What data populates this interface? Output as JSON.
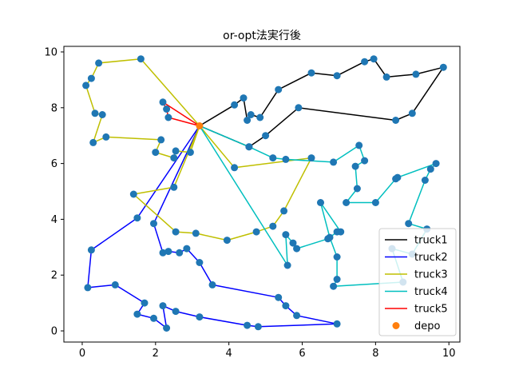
{
  "chart_data": {
    "type": "line",
    "title": "or-opt法実行後",
    "xlabel": "",
    "ylabel": "",
    "xlim": [
      -0.5,
      10.3
    ],
    "ylim": [
      -0.4,
      10.2
    ],
    "xticks": [
      0,
      2,
      4,
      6,
      8,
      10
    ],
    "yticks": [
      0,
      2,
      4,
      6,
      8,
      10
    ],
    "grid": false,
    "legend_position": "lower right",
    "depot": [
      3.2,
      7.35
    ],
    "series": [
      {
        "name": "truck1",
        "color": "#000000",
        "points": [
          [
            3.2,
            7.35
          ],
          [
            4.15,
            8.1
          ],
          [
            4.4,
            8.35
          ],
          [
            4.5,
            7.55
          ],
          [
            4.6,
            7.75
          ],
          [
            4.85,
            7.65
          ],
          [
            5.35,
            8.65
          ],
          [
            6.25,
            9.25
          ],
          [
            6.95,
            9.15
          ],
          [
            7.7,
            9.65
          ],
          [
            7.95,
            9.75
          ],
          [
            8.3,
            9.1
          ],
          [
            9.1,
            9.2
          ],
          [
            9.85,
            9.45
          ],
          [
            9.0,
            7.8
          ],
          [
            8.55,
            7.55
          ],
          [
            5.9,
            8.0
          ],
          [
            5.0,
            7.0
          ],
          [
            4.55,
            6.6
          ],
          [
            3.2,
            7.35
          ]
        ]
      },
      {
        "name": "truck2",
        "color": "#0000ff",
        "points": [
          [
            3.2,
            7.35
          ],
          [
            1.5,
            4.05
          ],
          [
            0.25,
            2.9
          ],
          [
            0.15,
            1.55
          ],
          [
            0.9,
            1.65
          ],
          [
            1.7,
            1.0
          ],
          [
            1.5,
            0.6
          ],
          [
            1.95,
            0.45
          ],
          [
            2.3,
            0.1
          ],
          [
            2.2,
            0.9
          ],
          [
            2.55,
            0.7
          ],
          [
            3.2,
            0.5
          ],
          [
            4.5,
            0.2
          ],
          [
            4.8,
            0.15
          ],
          [
            6.95,
            0.25
          ],
          [
            5.85,
            0.55
          ],
          [
            5.55,
            0.9
          ],
          [
            5.35,
            1.2
          ],
          [
            3.55,
            1.65
          ],
          [
            3.2,
            2.45
          ],
          [
            2.85,
            2.95
          ],
          [
            2.65,
            2.8
          ],
          [
            2.35,
            2.85
          ],
          [
            2.2,
            2.8
          ],
          [
            1.95,
            3.85
          ],
          [
            3.2,
            7.35
          ]
        ]
      },
      {
        "name": "truck3",
        "color": "#bfbf00",
        "points": [
          [
            3.2,
            7.35
          ],
          [
            1.6,
            9.75
          ],
          [
            0.45,
            9.6
          ],
          [
            0.25,
            9.05
          ],
          [
            0.1,
            8.8
          ],
          [
            0.35,
            7.8
          ],
          [
            0.55,
            7.75
          ],
          [
            0.3,
            6.75
          ],
          [
            0.65,
            6.95
          ],
          [
            2.15,
            6.85
          ],
          [
            2.0,
            6.4
          ],
          [
            2.5,
            6.2
          ],
          [
            2.55,
            6.45
          ],
          [
            2.95,
            6.4
          ],
          [
            3.2,
            7.35
          ],
          [
            4.15,
            5.85
          ],
          [
            6.25,
            6.2
          ],
          [
            5.5,
            4.3
          ],
          [
            5.2,
            3.75
          ],
          [
            4.75,
            3.55
          ],
          [
            3.95,
            3.25
          ],
          [
            3.1,
            3.5
          ],
          [
            2.55,
            3.55
          ],
          [
            1.4,
            4.9
          ],
          [
            2.5,
            5.15
          ],
          [
            3.2,
            7.35
          ]
        ]
      },
      {
        "name": "truck4",
        "color": "#00bfbf",
        "points": [
          [
            3.2,
            7.35
          ],
          [
            4.55,
            6.6
          ],
          [
            5.2,
            6.2
          ],
          [
            5.55,
            6.15
          ],
          [
            6.85,
            6.05
          ],
          [
            7.55,
            6.65
          ],
          [
            7.7,
            6.1
          ],
          [
            7.45,
            5.9
          ],
          [
            7.5,
            5.1
          ],
          [
            7.2,
            4.6
          ],
          [
            8.0,
            4.6
          ],
          [
            8.55,
            5.45
          ],
          [
            8.6,
            5.5
          ],
          [
            9.65,
            6.0
          ],
          [
            9.5,
            5.8
          ],
          [
            9.35,
            5.4
          ],
          [
            8.9,
            3.85
          ],
          [
            9.4,
            3.65
          ],
          [
            9.0,
            2.75
          ],
          [
            8.45,
            2.95
          ],
          [
            8.75,
            1.75
          ],
          [
            6.85,
            1.6
          ],
          [
            6.95,
            1.85
          ],
          [
            6.95,
            2.65
          ],
          [
            6.75,
            3.35
          ],
          [
            6.5,
            4.6
          ],
          [
            7.05,
            3.55
          ],
          [
            6.95,
            3.55
          ],
          [
            6.7,
            3.3
          ],
          [
            5.85,
            2.95
          ],
          [
            5.75,
            3.15
          ],
          [
            5.55,
            3.45
          ],
          [
            5.6,
            2.35
          ],
          [
            3.2,
            7.35
          ]
        ]
      },
      {
        "name": "truck5",
        "color": "#ff0000",
        "points": [
          [
            3.2,
            7.35
          ],
          [
            2.2,
            8.2
          ],
          [
            2.3,
            7.95
          ],
          [
            2.35,
            7.65
          ],
          [
            3.2,
            7.35
          ]
        ]
      }
    ],
    "depo_label": "depo",
    "marker_color": "#1f77b4",
    "depot_color": "#ff7f0e"
  }
}
